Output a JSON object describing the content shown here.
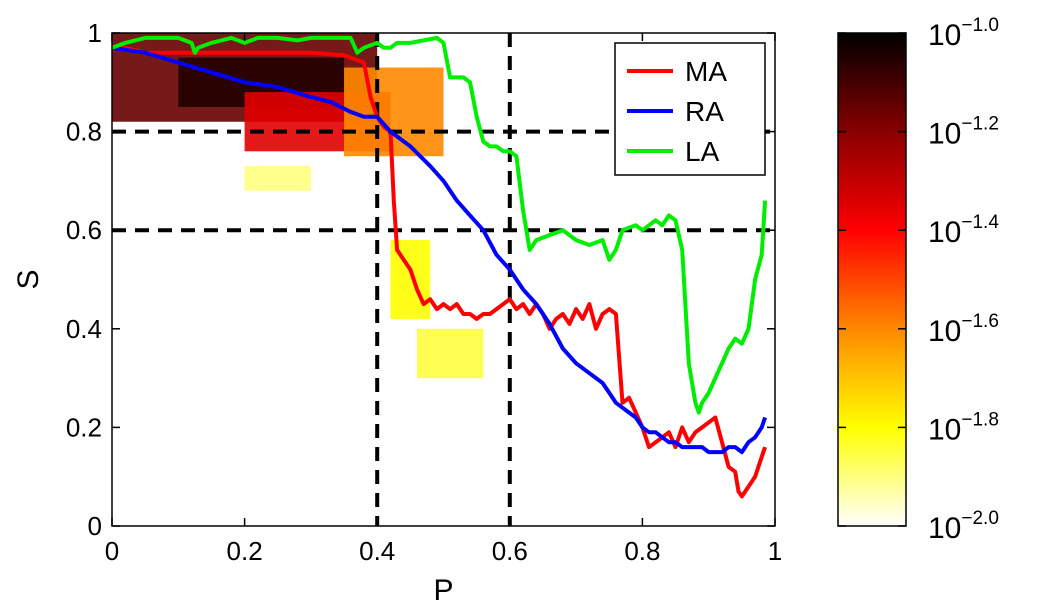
{
  "chart_data": {
    "type": "line",
    "title": "",
    "xlabel": "P",
    "ylabel": "S",
    "xlim": [
      0,
      1
    ],
    "ylim": [
      0,
      1
    ],
    "x_ticks": [
      "0",
      "0.2",
      "0.4",
      "0.6",
      "0.8",
      "1"
    ],
    "y_ticks": [
      "0",
      "0.2",
      "0.4",
      "0.6",
      "0.8",
      "1"
    ],
    "legend_position": "top-right",
    "reference_lines": {
      "vertical_x": [
        0.4,
        0.6
      ],
      "horizontal_y": [
        0.6,
        0.8
      ],
      "style": "dashed",
      "color": "#000000"
    },
    "series": [
      {
        "name": "MA",
        "color": "#ff0000",
        "points": [
          [
            0,
            0.97
          ],
          [
            0.02,
            0.97
          ],
          [
            0.05,
            0.96
          ],
          [
            0.1,
            0.96
          ],
          [
            0.15,
            0.96
          ],
          [
            0.2,
            0.96
          ],
          [
            0.25,
            0.96
          ],
          [
            0.3,
            0.96
          ],
          [
            0.35,
            0.955
          ],
          [
            0.38,
            0.94
          ],
          [
            0.39,
            0.87
          ],
          [
            0.4,
            0.83
          ],
          [
            0.41,
            0.81
          ],
          [
            0.42,
            0.8
          ],
          [
            0.425,
            0.66
          ],
          [
            0.43,
            0.56
          ],
          [
            0.44,
            0.54
          ],
          [
            0.45,
            0.52
          ],
          [
            0.46,
            0.48
          ],
          [
            0.47,
            0.45
          ],
          [
            0.48,
            0.46
          ],
          [
            0.49,
            0.44
          ],
          [
            0.5,
            0.45
          ],
          [
            0.51,
            0.44
          ],
          [
            0.52,
            0.45
          ],
          [
            0.53,
            0.43
          ],
          [
            0.54,
            0.43
          ],
          [
            0.55,
            0.42
          ],
          [
            0.56,
            0.43
          ],
          [
            0.57,
            0.43
          ],
          [
            0.58,
            0.44
          ],
          [
            0.59,
            0.45
          ],
          [
            0.6,
            0.46
          ],
          [
            0.61,
            0.44
          ],
          [
            0.62,
            0.45
          ],
          [
            0.63,
            0.43
          ],
          [
            0.64,
            0.45
          ],
          [
            0.65,
            0.43
          ],
          [
            0.66,
            0.4
          ],
          [
            0.67,
            0.42
          ],
          [
            0.68,
            0.43
          ],
          [
            0.69,
            0.41
          ],
          [
            0.7,
            0.44
          ],
          [
            0.71,
            0.42
          ],
          [
            0.72,
            0.45
          ],
          [
            0.73,
            0.4
          ],
          [
            0.74,
            0.43
          ],
          [
            0.75,
            0.44
          ],
          [
            0.76,
            0.43
          ],
          [
            0.77,
            0.25
          ],
          [
            0.78,
            0.26
          ],
          [
            0.79,
            0.23
          ],
          [
            0.8,
            0.2
          ],
          [
            0.81,
            0.16
          ],
          [
            0.82,
            0.17
          ],
          [
            0.83,
            0.18
          ],
          [
            0.84,
            0.19
          ],
          [
            0.85,
            0.16
          ],
          [
            0.86,
            0.2
          ],
          [
            0.87,
            0.17
          ],
          [
            0.88,
            0.19
          ],
          [
            0.89,
            0.2
          ],
          [
            0.9,
            0.21
          ],
          [
            0.91,
            0.22
          ],
          [
            0.92,
            0.17
          ],
          [
            0.93,
            0.12
          ],
          [
            0.94,
            0.11
          ],
          [
            0.945,
            0.07
          ],
          [
            0.95,
            0.06
          ],
          [
            0.96,
            0.08
          ],
          [
            0.97,
            0.1
          ],
          [
            0.98,
            0.14
          ],
          [
            0.985,
            0.16
          ]
        ]
      },
      {
        "name": "RA",
        "color": "#0000ff",
        "points": [
          [
            0,
            0.97
          ],
          [
            0.05,
            0.96
          ],
          [
            0.1,
            0.94
          ],
          [
            0.15,
            0.92
          ],
          [
            0.2,
            0.9
          ],
          [
            0.25,
            0.89
          ],
          [
            0.3,
            0.87
          ],
          [
            0.33,
            0.86
          ],
          [
            0.36,
            0.84
          ],
          [
            0.38,
            0.83
          ],
          [
            0.4,
            0.83
          ],
          [
            0.42,
            0.8
          ],
          [
            0.45,
            0.77
          ],
          [
            0.48,
            0.73
          ],
          [
            0.5,
            0.7
          ],
          [
            0.52,
            0.66
          ],
          [
            0.54,
            0.63
          ],
          [
            0.56,
            0.6
          ],
          [
            0.58,
            0.55
          ],
          [
            0.6,
            0.52
          ],
          [
            0.62,
            0.48
          ],
          [
            0.64,
            0.45
          ],
          [
            0.66,
            0.41
          ],
          [
            0.68,
            0.36
          ],
          [
            0.7,
            0.33
          ],
          [
            0.72,
            0.31
          ],
          [
            0.74,
            0.29
          ],
          [
            0.75,
            0.27
          ],
          [
            0.76,
            0.25
          ],
          [
            0.77,
            0.24
          ],
          [
            0.78,
            0.23
          ],
          [
            0.79,
            0.22
          ],
          [
            0.8,
            0.2
          ],
          [
            0.81,
            0.19
          ],
          [
            0.82,
            0.19
          ],
          [
            0.83,
            0.18
          ],
          [
            0.84,
            0.17
          ],
          [
            0.85,
            0.17
          ],
          [
            0.86,
            0.16
          ],
          [
            0.87,
            0.16
          ],
          [
            0.88,
            0.16
          ],
          [
            0.89,
            0.16
          ],
          [
            0.9,
            0.15
          ],
          [
            0.91,
            0.15
          ],
          [
            0.92,
            0.15
          ],
          [
            0.93,
            0.16
          ],
          [
            0.94,
            0.16
          ],
          [
            0.95,
            0.15
          ],
          [
            0.96,
            0.17
          ],
          [
            0.97,
            0.18
          ],
          [
            0.98,
            0.2
          ],
          [
            0.985,
            0.22
          ]
        ]
      },
      {
        "name": "LA",
        "color": "#00ee00",
        "points": [
          [
            0,
            0.97
          ],
          [
            0.02,
            0.98
          ],
          [
            0.05,
            0.99
          ],
          [
            0.08,
            0.99
          ],
          [
            0.1,
            0.99
          ],
          [
            0.12,
            0.98
          ],
          [
            0.125,
            0.96
          ],
          [
            0.13,
            0.97
          ],
          [
            0.15,
            0.98
          ],
          [
            0.18,
            0.99
          ],
          [
            0.2,
            0.98
          ],
          [
            0.22,
            0.99
          ],
          [
            0.25,
            0.99
          ],
          [
            0.28,
            0.985
          ],
          [
            0.3,
            0.99
          ],
          [
            0.33,
            0.99
          ],
          [
            0.36,
            0.99
          ],
          [
            0.37,
            0.96
          ],
          [
            0.38,
            0.97
          ],
          [
            0.4,
            0.98
          ],
          [
            0.41,
            0.97
          ],
          [
            0.42,
            0.97
          ],
          [
            0.43,
            0.98
          ],
          [
            0.45,
            0.98
          ],
          [
            0.47,
            0.985
          ],
          [
            0.49,
            0.99
          ],
          [
            0.5,
            0.98
          ],
          [
            0.51,
            0.91
          ],
          [
            0.53,
            0.91
          ],
          [
            0.54,
            0.9
          ],
          [
            0.55,
            0.83
          ],
          [
            0.56,
            0.78
          ],
          [
            0.57,
            0.77
          ],
          [
            0.58,
            0.77
          ],
          [
            0.59,
            0.76
          ],
          [
            0.6,
            0.76
          ],
          [
            0.61,
            0.75
          ],
          [
            0.62,
            0.64
          ],
          [
            0.63,
            0.56
          ],
          [
            0.64,
            0.58
          ],
          [
            0.66,
            0.59
          ],
          [
            0.68,
            0.6
          ],
          [
            0.7,
            0.58
          ],
          [
            0.72,
            0.57
          ],
          [
            0.74,
            0.58
          ],
          [
            0.75,
            0.54
          ],
          [
            0.76,
            0.56
          ],
          [
            0.77,
            0.6
          ],
          [
            0.79,
            0.61
          ],
          [
            0.8,
            0.6
          ],
          [
            0.82,
            0.62
          ],
          [
            0.83,
            0.61
          ],
          [
            0.84,
            0.63
          ],
          [
            0.85,
            0.62
          ],
          [
            0.86,
            0.56
          ],
          [
            0.87,
            0.33
          ],
          [
            0.88,
            0.25
          ],
          [
            0.885,
            0.23
          ],
          [
            0.89,
            0.25
          ],
          [
            0.9,
            0.27
          ],
          [
            0.91,
            0.3
          ],
          [
            0.92,
            0.33
          ],
          [
            0.93,
            0.36
          ],
          [
            0.94,
            0.38
          ],
          [
            0.95,
            0.37
          ],
          [
            0.96,
            0.4
          ],
          [
            0.97,
            0.5
          ],
          [
            0.98,
            0.55
          ],
          [
            0.985,
            0.66
          ]
        ]
      }
    ],
    "colorbar": {
      "scale": "log10",
      "range": [
        -2.0,
        -1.0
      ],
      "tick_exponents": [
        "-1.0",
        "-1.2",
        "-1.4",
        "-1.6",
        "-1.8",
        "-2.0"
      ],
      "tick_base": "10",
      "colormap": [
        "#ffffff",
        "#ffff00",
        "#ff8800",
        "#ff0000",
        "#880000",
        "#000000"
      ]
    },
    "heatmap_regions": [
      {
        "x_range": [
          0.0,
          0.4
        ],
        "y_range": [
          0.82,
          1.0
        ],
        "log_density": -1.15
      },
      {
        "x_range": [
          0.1,
          0.35
        ],
        "y_range": [
          0.85,
          0.95
        ],
        "log_density": -1.05
      },
      {
        "x_range": [
          0.2,
          0.42
        ],
        "y_range": [
          0.76,
          0.88
        ],
        "log_density": -1.35
      },
      {
        "x_range": [
          0.35,
          0.5
        ],
        "y_range": [
          0.75,
          0.93
        ],
        "log_density": -1.6
      },
      {
        "x_range": [
          0.42,
          0.48
        ],
        "y_range": [
          0.42,
          0.58
        ],
        "log_density": -1.8
      },
      {
        "x_range": [
          0.46,
          0.56
        ],
        "y_range": [
          0.3,
          0.4
        ],
        "log_density": -1.85
      },
      {
        "x_range": [
          0.2,
          0.3
        ],
        "y_range": [
          0.68,
          0.73
        ],
        "log_density": -1.9
      }
    ]
  }
}
